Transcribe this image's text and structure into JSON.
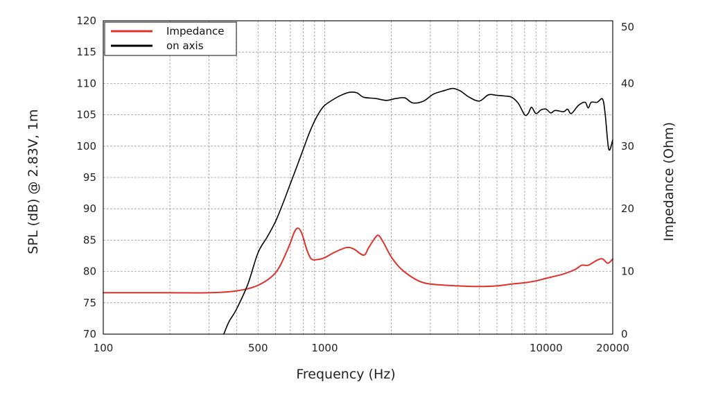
{
  "chart_data": {
    "type": "line",
    "xscale": "log",
    "xlabel": "Frequency (Hz)",
    "ylabel": "SPL (dB) @ 2.83V, 1m",
    "y2label": "Impedance (Ohm)",
    "xlim": [
      100,
      20000
    ],
    "ylim": [
      70,
      120
    ],
    "y2lim": [
      0,
      50
    ],
    "xticks": [
      {
        "value": 100,
        "label": "100"
      },
      {
        "value": 500,
        "label": "500"
      },
      {
        "value": 1000,
        "label": "1000"
      },
      {
        "value": 10000,
        "label": "10000"
      },
      {
        "value": 20000,
        "label": "20000"
      }
    ],
    "yticks": [
      {
        "value": 70,
        "label": "70"
      },
      {
        "value": 75,
        "label": "75"
      },
      {
        "value": 80,
        "label": "80"
      },
      {
        "value": 85,
        "label": "85"
      },
      {
        "value": 90,
        "label": "90"
      },
      {
        "value": 95,
        "label": "95"
      },
      {
        "value": 100,
        "label": "100"
      },
      {
        "value": 105,
        "label": "105"
      },
      {
        "value": 110,
        "label": "110"
      },
      {
        "value": 115,
        "label": "115"
      },
      {
        "value": 120,
        "label": "120"
      }
    ],
    "y2ticks": [
      {
        "value": 0,
        "label": "0"
      },
      {
        "value": 10,
        "label": "10"
      },
      {
        "value": 20,
        "label": "20"
      },
      {
        "value": 30,
        "label": "30"
      },
      {
        "value": 40,
        "label": "40"
      },
      {
        "value": 50,
        "label": "50"
      }
    ],
    "grid": true,
    "legend_position": "top-left",
    "series": [
      {
        "name": "Impedance",
        "color": "#e0302a",
        "axis": "y2",
        "points": [
          [
            100,
            6.6
          ],
          [
            200,
            6.6
          ],
          [
            300,
            6.6
          ],
          [
            400,
            6.9
          ],
          [
            500,
            7.8
          ],
          [
            600,
            9.8
          ],
          [
            680,
            13.5
          ],
          [
            730,
            16.3
          ],
          [
            760,
            16.9
          ],
          [
            790,
            16.0
          ],
          [
            830,
            13.5
          ],
          [
            870,
            12.0
          ],
          [
            930,
            11.9
          ],
          [
            1000,
            12.2
          ],
          [
            1100,
            13.0
          ],
          [
            1250,
            13.8
          ],
          [
            1350,
            13.6
          ],
          [
            1500,
            12.6
          ],
          [
            1580,
            13.8
          ],
          [
            1700,
            15.5
          ],
          [
            1760,
            15.7
          ],
          [
            1850,
            14.5
          ],
          [
            2000,
            12.3
          ],
          [
            2200,
            10.5
          ],
          [
            2500,
            9.0
          ],
          [
            2800,
            8.2
          ],
          [
            3200,
            7.9
          ],
          [
            4000,
            7.7
          ],
          [
            5000,
            7.6
          ],
          [
            6000,
            7.7
          ],
          [
            7000,
            8.0
          ],
          [
            8000,
            8.2
          ],
          [
            9000,
            8.5
          ],
          [
            10000,
            8.9
          ],
          [
            12000,
            9.6
          ],
          [
            13500,
            10.3
          ],
          [
            14500,
            11.0
          ],
          [
            15500,
            11.0
          ],
          [
            17000,
            11.8
          ],
          [
            18000,
            12.0
          ],
          [
            19000,
            11.3
          ],
          [
            20000,
            12.0
          ]
        ]
      },
      {
        "name": "on axis",
        "color": "#000000",
        "axis": "y",
        "points": [
          [
            350,
            70.0
          ],
          [
            370,
            72.0
          ],
          [
            400,
            74.0
          ],
          [
            450,
            78.0
          ],
          [
            500,
            83.0
          ],
          [
            550,
            85.5
          ],
          [
            600,
            88.0
          ],
          [
            650,
            91.0
          ],
          [
            700,
            94.0
          ],
          [
            750,
            96.8
          ],
          [
            800,
            99.5
          ],
          [
            850,
            102.0
          ],
          [
            900,
            104.0
          ],
          [
            950,
            105.5
          ],
          [
            1000,
            106.5
          ],
          [
            1100,
            107.5
          ],
          [
            1200,
            108.2
          ],
          [
            1300,
            108.6
          ],
          [
            1400,
            108.5
          ],
          [
            1500,
            107.8
          ],
          [
            1700,
            107.6
          ],
          [
            1900,
            107.3
          ],
          [
            2100,
            107.6
          ],
          [
            2300,
            107.7
          ],
          [
            2500,
            106.9
          ],
          [
            2800,
            107.2
          ],
          [
            3100,
            108.3
          ],
          [
            3500,
            108.9
          ],
          [
            3800,
            109.2
          ],
          [
            4100,
            108.8
          ],
          [
            4500,
            107.8
          ],
          [
            5000,
            107.2
          ],
          [
            5500,
            108.2
          ],
          [
            6000,
            108.1
          ],
          [
            6500,
            108.0
          ],
          [
            7000,
            107.8
          ],
          [
            7500,
            106.8
          ],
          [
            8000,
            105.0
          ],
          [
            8300,
            105.2
          ],
          [
            8600,
            106.2
          ],
          [
            9000,
            105.2
          ],
          [
            9500,
            105.8
          ],
          [
            10000,
            105.9
          ],
          [
            10500,
            105.3
          ],
          [
            11000,
            105.7
          ],
          [
            12000,
            105.5
          ],
          [
            12500,
            105.9
          ],
          [
            13000,
            105.2
          ],
          [
            14000,
            106.5
          ],
          [
            15000,
            107.0
          ],
          [
            15500,
            106.1
          ],
          [
            16000,
            107.0
          ],
          [
            17000,
            107.0
          ],
          [
            18000,
            107.5
          ],
          [
            18500,
            105.0
          ],
          [
            19200,
            99.5
          ],
          [
            20000,
            101.0
          ]
        ]
      }
    ]
  }
}
